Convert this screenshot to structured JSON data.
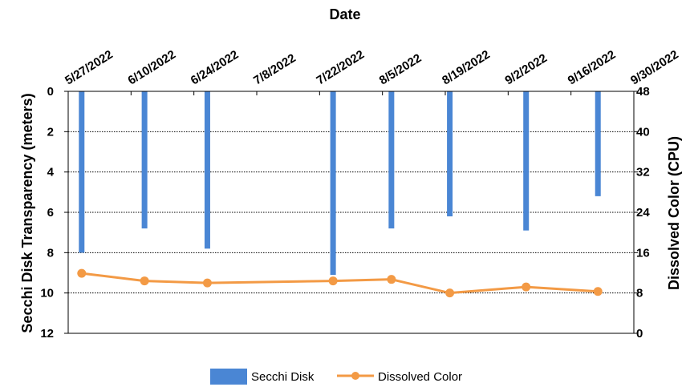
{
  "chart_data": {
    "type": "bar+line",
    "top_title": "Date",
    "x_dates": [
      "5/27/2022",
      "6/10/2022",
      "6/24/2022",
      "7/8/2022",
      "7/22/2022",
      "8/5/2022",
      "8/19/2022",
      "9/2/2022",
      "9/16/2022",
      "9/30/2022"
    ],
    "y_left": {
      "label": "Secchi Disk Transparency (meters)",
      "ylim": [
        0,
        12
      ],
      "ticks": [
        0,
        2,
        4,
        6,
        8,
        10,
        12
      ],
      "inverted": true
    },
    "y_right": {
      "label": "Dissolved Color (CPU)",
      "ylim": [
        0,
        48
      ],
      "ticks": [
        0,
        8,
        16,
        24,
        32,
        40,
        48
      ]
    },
    "grid": true,
    "legend_position": "bottom",
    "series": [
      {
        "name": "Secchi Disk",
        "type": "bar",
        "axis": "left",
        "color": "#4a86d4",
        "points": [
          {
            "x": "5/30/2022",
            "y": 8.0
          },
          {
            "x": "6/13/2022",
            "y": 6.8
          },
          {
            "x": "6/27/2022",
            "y": 7.8
          },
          {
            "x": "7/25/2022",
            "y": 9.1
          },
          {
            "x": "8/7/2022",
            "y": 6.8
          },
          {
            "x": "8/20/2022",
            "y": 6.2
          },
          {
            "x": "9/6/2022",
            "y": 6.9
          },
          {
            "x": "9/22/2022",
            "y": 5.2
          }
        ]
      },
      {
        "name": "Dissolved Color",
        "type": "line",
        "axis": "right",
        "color": "#f39a45",
        "points": [
          {
            "x": "5/30/2022",
            "y": 11.9
          },
          {
            "x": "6/13/2022",
            "y": 10.4
          },
          {
            "x": "6/27/2022",
            "y": 10.0
          },
          {
            "x": "7/25/2022",
            "y": 10.4
          },
          {
            "x": "8/7/2022",
            "y": 10.7
          },
          {
            "x": "8/20/2022",
            "y": 8.0
          },
          {
            "x": "9/6/2022",
            "y": 9.2
          },
          {
            "x": "9/22/2022",
            "y": 8.3
          }
        ]
      }
    ]
  }
}
